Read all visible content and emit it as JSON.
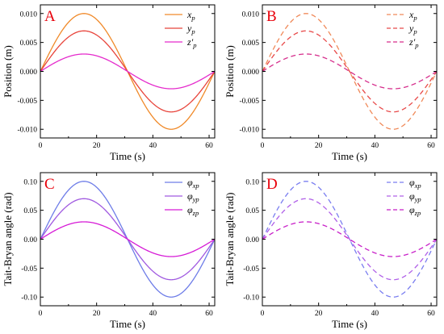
{
  "chart_data": [
    {
      "panel": "A",
      "type": "line",
      "xlabel": "Time (s)",
      "ylabel": "Position (m)",
      "xlim": [
        0,
        62
      ],
      "ylim": [
        -0.0115,
        0.0115
      ],
      "xticks": [
        0,
        20,
        40,
        60
      ],
      "yticks": [
        -0.01,
        -0.005,
        0,
        0.005,
        0.01
      ],
      "ytick_labels": [
        "-0.010",
        "-0.005",
        "0.000",
        "0.005",
        "0.010"
      ],
      "xtick_labels": [
        "0",
        "20",
        "40",
        "60"
      ],
      "line_style": "solid",
      "legend_position": "top-right",
      "period_s": 62,
      "series": [
        {
          "name": "x_p",
          "label_main": "x",
          "label_sub": "p",
          "amplitude": 0.01,
          "color": "#f08a2a"
        },
        {
          "name": "y_p",
          "label_main": "y",
          "label_sub": "p",
          "amplitude": 0.007,
          "color": "#e8453c"
        },
        {
          "name": "z'_p",
          "label_main": "z′",
          "label_sub": "p",
          "amplitude": 0.003,
          "color": "#e52bcc"
        }
      ]
    },
    {
      "panel": "B",
      "type": "line",
      "xlabel": "Time (s)",
      "ylabel": "Position (m)",
      "xlim": [
        0,
        62
      ],
      "ylim": [
        -0.0115,
        0.0115
      ],
      "xticks": [
        0,
        20,
        40,
        60
      ],
      "yticks": [
        -0.01,
        -0.005,
        0,
        0.005,
        0.01
      ],
      "ytick_labels": [
        "-0.010",
        "-0.005",
        "0.000",
        "0.005",
        "0.010"
      ],
      "xtick_labels": [
        "0",
        "20",
        "40",
        "60"
      ],
      "line_style": "dashed",
      "legend_position": "top-right",
      "period_s": 62,
      "series": [
        {
          "name": "x_p",
          "label_main": "x",
          "label_sub": "p",
          "amplitude": 0.01,
          "color": "#f08a5a"
        },
        {
          "name": "y_p",
          "label_main": "y",
          "label_sub": "p",
          "amplitude": 0.007,
          "color": "#e84a4a"
        },
        {
          "name": "z'_p",
          "label_main": "z′",
          "label_sub": "p",
          "amplitude": 0.003,
          "color": "#d62e8c"
        }
      ]
    },
    {
      "panel": "C",
      "type": "line",
      "xlabel": "Time (s)",
      "ylabel": "Tait-Bryan angle (rad)",
      "xlim": [
        0,
        62
      ],
      "ylim": [
        -0.115,
        0.115
      ],
      "xticks": [
        0,
        20,
        40,
        60
      ],
      "yticks": [
        -0.1,
        -0.05,
        0,
        0.05,
        0.1
      ],
      "ytick_labels": [
        "-0.10",
        "-0.05",
        "0.00",
        "0.05",
        "0.10"
      ],
      "xtick_labels": [
        "0",
        "20",
        "40",
        "60"
      ],
      "line_style": "solid",
      "legend_position": "top-right",
      "period_s": 62,
      "series": [
        {
          "name": "φx_p",
          "label_main": "φ",
          "label_sub": "xp",
          "amplitude": 0.1,
          "color": "#6e7de8"
        },
        {
          "name": "φy_p",
          "label_main": "φ",
          "label_sub": "yp",
          "amplitude": 0.07,
          "color": "#a05ae0"
        },
        {
          "name": "φz_p",
          "label_main": "φ",
          "label_sub": "zp",
          "amplitude": 0.03,
          "color": "#d61ad6"
        }
      ]
    },
    {
      "panel": "D",
      "type": "line",
      "xlabel": "Time (s)",
      "ylabel": "Tait-Bryan angle (rad)",
      "xlim": [
        0,
        62
      ],
      "ylim": [
        -0.115,
        0.115
      ],
      "xticks": [
        0,
        20,
        40,
        60
      ],
      "yticks": [
        -0.1,
        -0.05,
        0,
        0.05,
        0.1
      ],
      "ytick_labels": [
        "-0.10",
        "-0.05",
        "0.00",
        "0.05",
        "0.10"
      ],
      "xtick_labels": [
        "0",
        "20",
        "40",
        "60"
      ],
      "line_style": "dashed",
      "legend_position": "top-right",
      "period_s": 62,
      "series": [
        {
          "name": "φx_p",
          "label_main": "φ",
          "label_sub": "xp",
          "amplitude": 0.1,
          "color": "#7a7ef0"
        },
        {
          "name": "φy_p",
          "label_main": "φ",
          "label_sub": "yp",
          "amplitude": 0.07,
          "color": "#b060e8"
        },
        {
          "name": "φz_p",
          "label_main": "φ",
          "label_sub": "zp",
          "amplitude": 0.03,
          "color": "#c81fc8"
        }
      ]
    }
  ]
}
